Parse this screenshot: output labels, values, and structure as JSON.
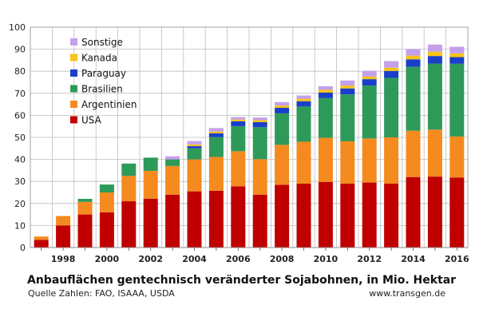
{
  "chart_data": {
    "type": "bar",
    "stacked": true,
    "title": "Anbauflächen gentechnisch veränderter Sojabohnen, in Mio. Hektar",
    "xlabel": "",
    "ylabel": "",
    "ylim": [
      0,
      100
    ],
    "yticks": [
      0,
      10,
      20,
      30,
      40,
      50,
      60,
      70,
      80,
      90,
      100
    ],
    "grid": true,
    "legend_position": "top-left",
    "categories": [
      "1997",
      "1998",
      "1999",
      "2000",
      "2001",
      "2002",
      "2003",
      "2004",
      "2005",
      "2006",
      "2007",
      "2008",
      "2009",
      "2010",
      "2011",
      "2012",
      "2013",
      "2014",
      "2015",
      "2016"
    ],
    "xtick_labels": [
      "1998",
      "2000",
      "2002",
      "2004",
      "2006",
      "2008",
      "2010",
      "2012",
      "2014",
      "2016"
    ],
    "series": [
      {
        "name": "USA",
        "color": "#c00000",
        "values": [
          3.5,
          10.0,
          15.0,
          16.0,
          21.0,
          22.2,
          24.0,
          25.5,
          25.8,
          27.8,
          24.0,
          28.5,
          29.0,
          29.8,
          29.0,
          29.5,
          29.0,
          32.0,
          32.2,
          31.8
        ]
      },
      {
        "name": "Argentinien",
        "color": "#f58a1f",
        "values": [
          1.5,
          4.3,
          5.7,
          9.0,
          11.5,
          12.6,
          13.0,
          14.5,
          15.3,
          15.9,
          16.1,
          18.1,
          19.0,
          20.0,
          19.2,
          20.0,
          21.0,
          21.0,
          21.3,
          18.6
        ]
      },
      {
        "name": "Brasilien",
        "color": "#2e9a5a",
        "values": [
          0.0,
          0.0,
          1.4,
          3.6,
          5.6,
          6.0,
          3.0,
          5.0,
          9.0,
          11.4,
          14.5,
          14.3,
          16.0,
          18.0,
          21.3,
          24.0,
          27.0,
          29.0,
          30.0,
          33.0
        ]
      },
      {
        "name": "Paraguay",
        "color": "#1a3fc9",
        "values": [
          0.0,
          0.0,
          0.0,
          0.0,
          0.0,
          0.0,
          0.0,
          1.0,
          1.7,
          2.2,
          2.3,
          2.5,
          2.4,
          2.5,
          2.7,
          2.9,
          3.1,
          3.4,
          3.4,
          3.0
        ]
      },
      {
        "name": "Kanada",
        "color": "#f7c319",
        "values": [
          0.0,
          0.0,
          0.0,
          0.0,
          0.0,
          0.0,
          0.0,
          0.8,
          0.8,
          0.8,
          0.9,
          1.0,
          1.1,
          1.3,
          1.3,
          1.2,
          1.5,
          1.7,
          2.0,
          1.7
        ]
      },
      {
        "name": "Sonstige",
        "color": "#c4a0ea",
        "values": [
          0.0,
          0.0,
          0.0,
          0.0,
          0.0,
          0.0,
          1.4,
          1.5,
          1.6,
          1.1,
          1.2,
          1.6,
          1.5,
          1.6,
          2.3,
          2.6,
          3.0,
          3.0,
          3.2,
          3.0
        ]
      }
    ],
    "legend_order": [
      "Sonstige",
      "Kanada",
      "Paraguay",
      "Brasilien",
      "Argentinien",
      "USA"
    ]
  },
  "captions": {
    "title": "Anbauflächen gentechnisch veränderter Sojabohnen, in Mio. Hektar",
    "source": "Quelle Zahlen: FAO, ISAAA, USDA",
    "credit": "www.transgen.de"
  }
}
